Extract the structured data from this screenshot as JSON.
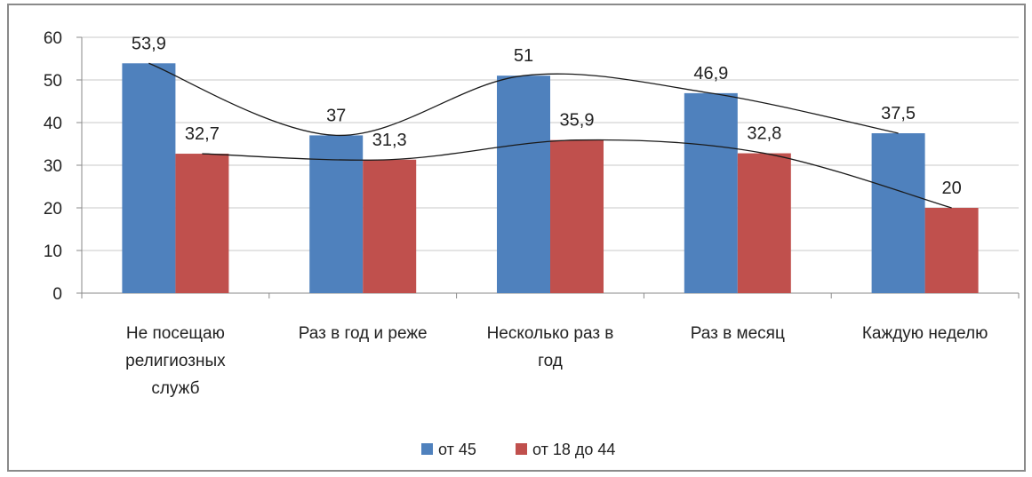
{
  "chart_data": {
    "type": "bar",
    "categories": [
      "Не посещаю религиозных служб",
      "Раз в год и реже",
      "Несколько раз в год",
      "Раз в месяц",
      "Каждую неделю"
    ],
    "category_lines": [
      [
        "Не посещаю",
        "религиозных",
        "служб"
      ],
      [
        "Раз в год и реже"
      ],
      [
        "Несколько раз в",
        "год"
      ],
      [
        "Раз в месяц"
      ],
      [
        "Каждую неделю"
      ]
    ],
    "series": [
      {
        "name": "от 45",
        "values": [
          53.9,
          37,
          51,
          46.9,
          37.5
        ],
        "labels": [
          "53,9",
          "37",
          "51",
          "46,9",
          "37,5"
        ],
        "color": "#4f81bd"
      },
      {
        "name": "от 18 до 44",
        "values": [
          32.7,
          31.3,
          35.9,
          32.8,
          20
        ],
        "labels": [
          "32,7",
          "31,3",
          "35,9",
          "32,8",
          "20"
        ],
        "color": "#c0504d"
      }
    ],
    "y_ticks": [
      0,
      10,
      20,
      30,
      40,
      50,
      60
    ],
    "ylim": [
      0,
      60
    ],
    "grid": true,
    "legend": "bottom",
    "trendline": "smoothed line through each series",
    "title": "",
    "xlabel": "",
    "ylabel": ""
  }
}
